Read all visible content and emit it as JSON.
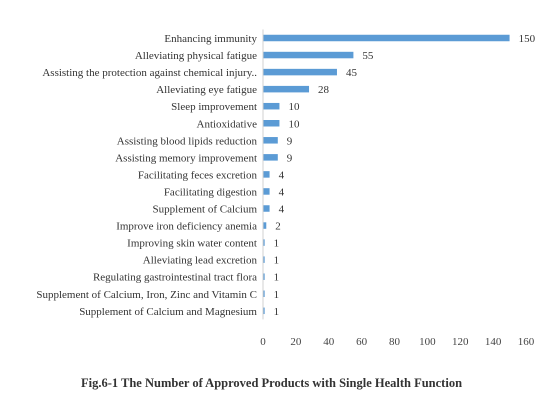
{
  "chart_data": {
    "type": "bar",
    "orientation": "horizontal",
    "title": "Fig.6-1 The Number of Approved Products with Single Health Function",
    "categories": [
      "Enhancing immunity",
      "Alleviating physical fatigue",
      "Assisting the protection against chemical injury..",
      "Alleviating eye fatigue",
      "Sleep improvement",
      "Antioxidative",
      "Assisting blood lipids reduction",
      "Assisting memory improvement",
      "Facilitating feces excretion",
      "Facilitating digestion",
      "Supplement of Calcium",
      "Improve iron deficiency anemia",
      "Improving skin water content",
      "Alleviating lead excretion",
      "Regulating gastrointestinal tract flora",
      "Supplement of Calcium, Iron, Zinc and Vitamin C",
      "Supplement of Calcium and Magnesium"
    ],
    "values": [
      150,
      55,
      45,
      28,
      10,
      10,
      9,
      9,
      4,
      4,
      4,
      2,
      1,
      1,
      1,
      1,
      1
    ],
    "xlim": [
      0,
      160
    ],
    "xticks": [
      0,
      20,
      40,
      60,
      80,
      100,
      120,
      140,
      160
    ],
    "bar_color": "#5B9BD5",
    "grid": false,
    "data_labels": true
  }
}
